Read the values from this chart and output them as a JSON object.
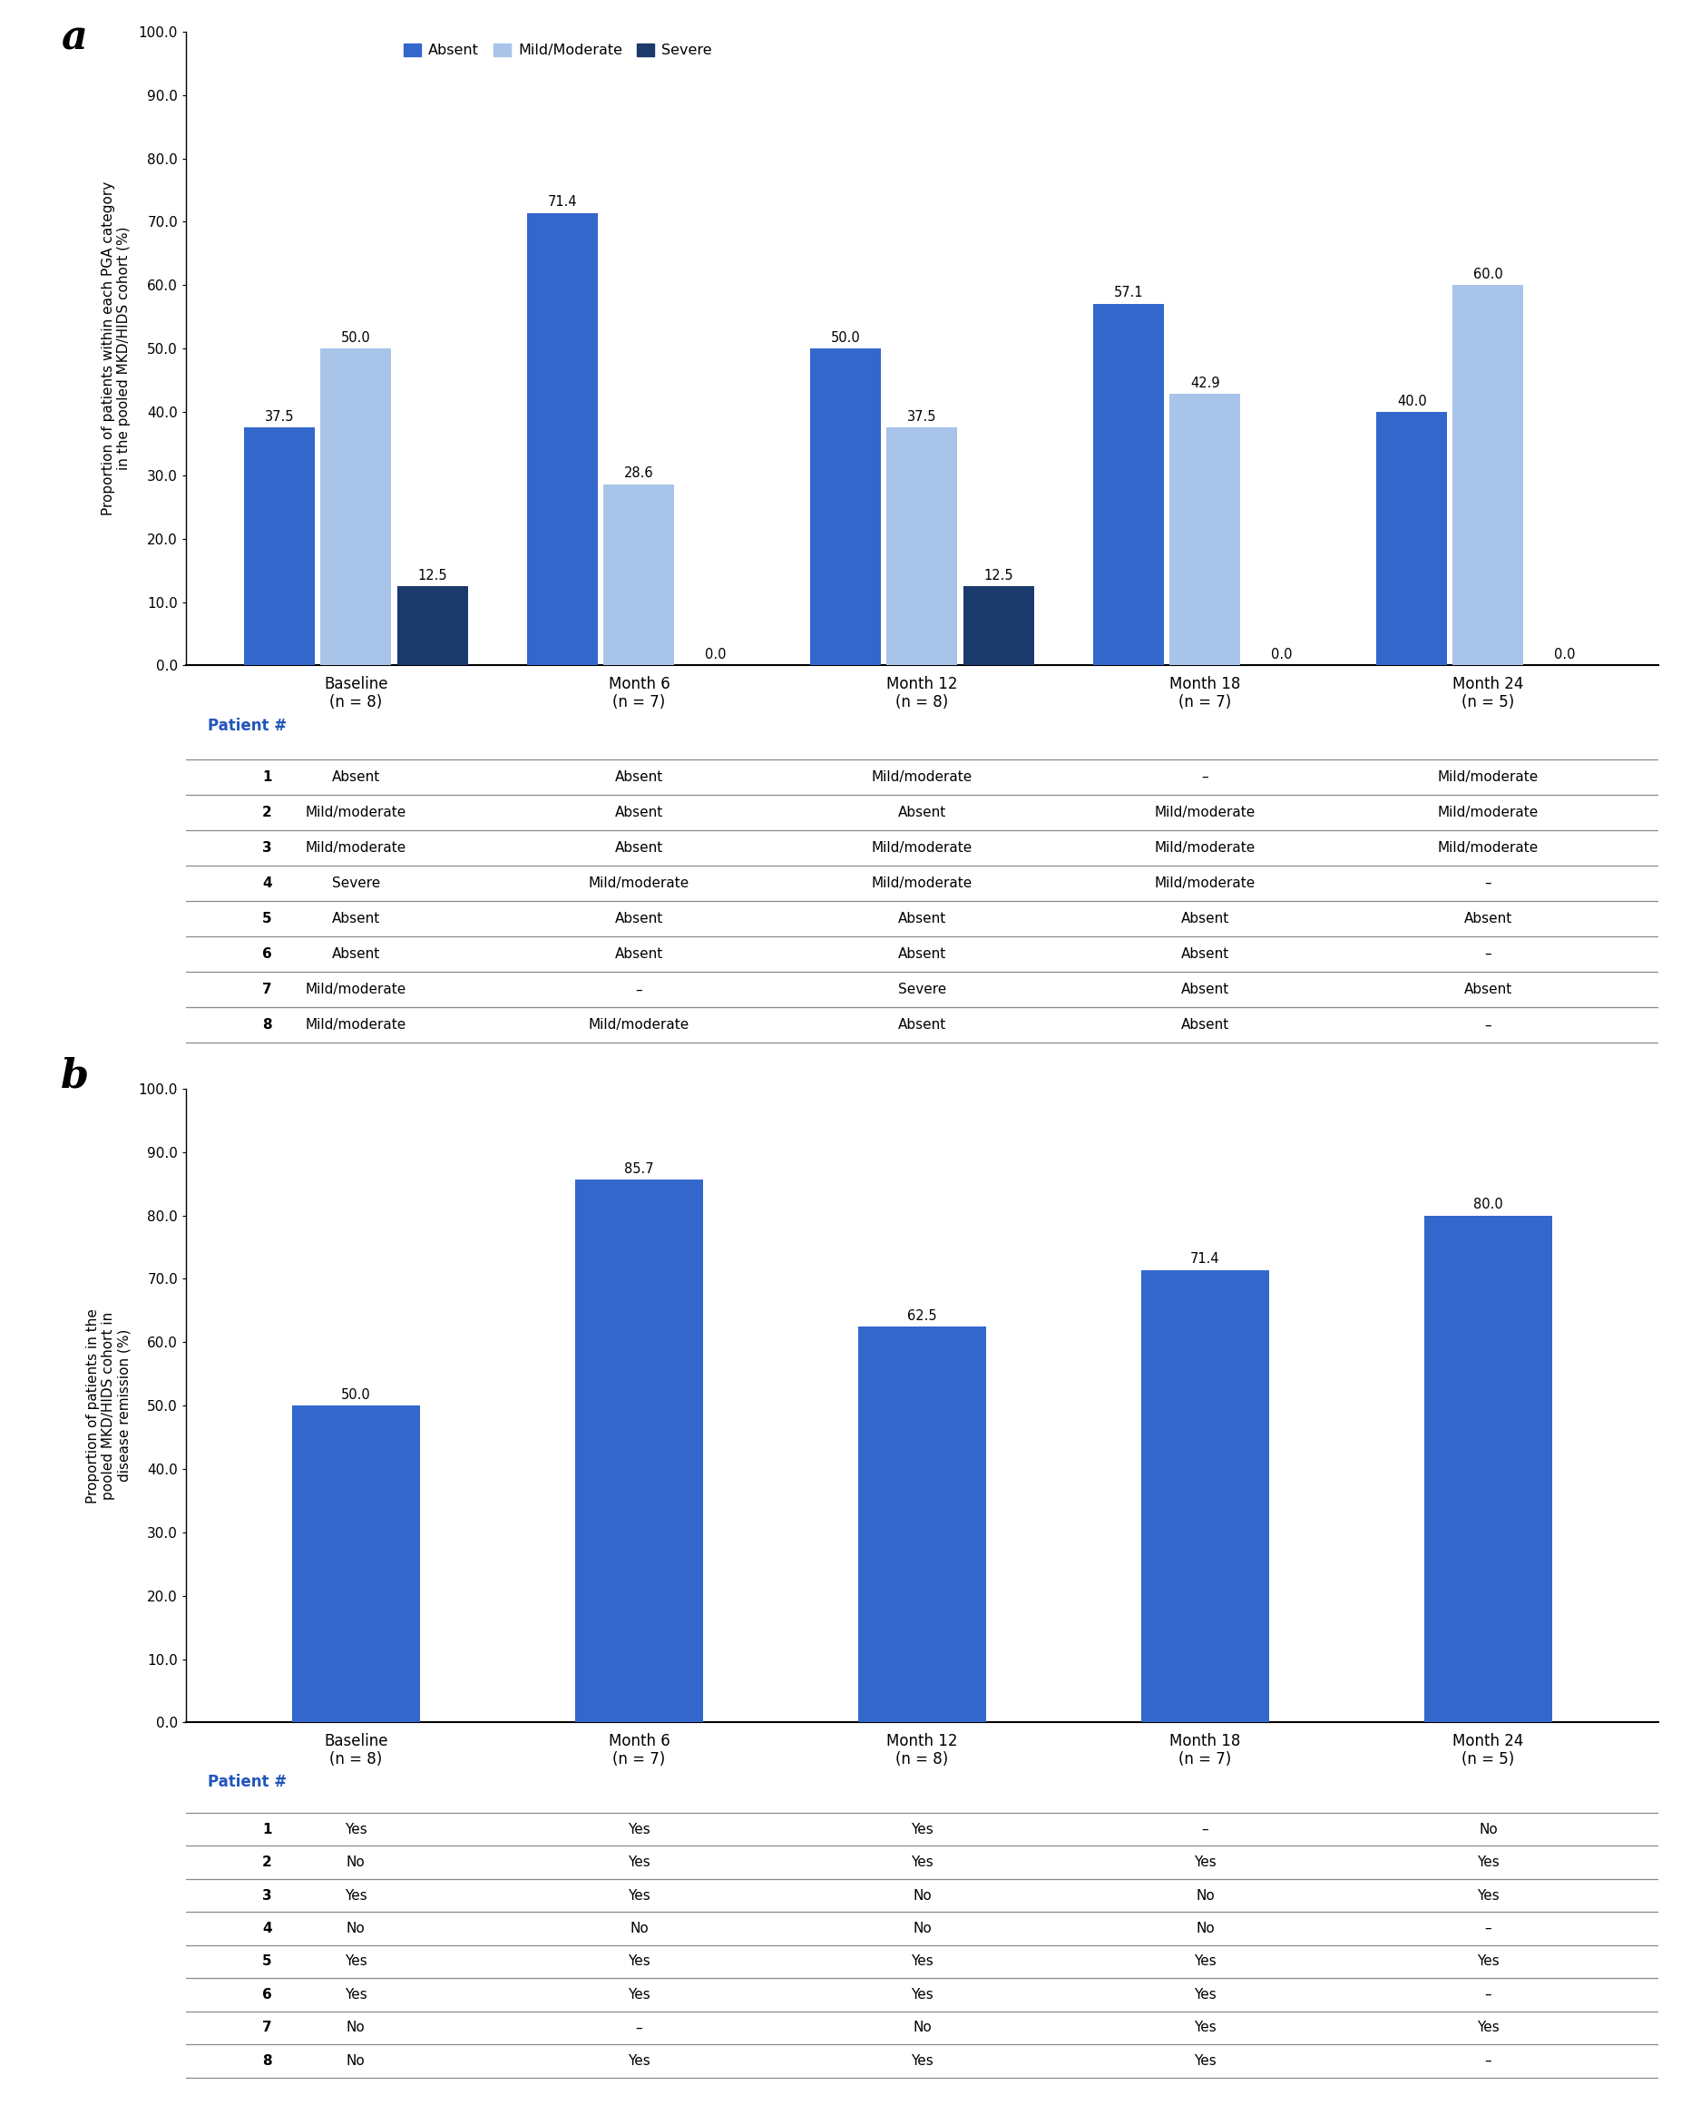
{
  "panel_a": {
    "label": "a",
    "categories": [
      "Baseline\n(n = 8)",
      "Month 6\n(n = 7)",
      "Month 12\n(n = 8)",
      "Month 18\n(n = 7)",
      "Month 24\n(n = 5)"
    ],
    "absent": [
      37.5,
      71.4,
      50.0,
      57.1,
      40.0
    ],
    "mild": [
      50.0,
      28.6,
      37.5,
      42.9,
      60.0
    ],
    "severe": [
      12.5,
      0.0,
      12.5,
      0.0,
      0.0
    ],
    "color_absent": "#3367CC",
    "color_mild": "#A8C4E8",
    "color_severe": "#1A3A6B",
    "ylabel": "Proportion of patients within each PGA category\nin the pooled MKD/HIDS cohort (%)",
    "ylim": [
      0,
      100
    ],
    "yticks": [
      0.0,
      10.0,
      20.0,
      30.0,
      40.0,
      50.0,
      60.0,
      70.0,
      80.0,
      90.0,
      100.0
    ],
    "legend_labels": [
      "Absent",
      "Mild/Moderate",
      "Severe"
    ],
    "table_header_color": "#2255BB",
    "table_header": "Patient #",
    "table_data": [
      [
        "1",
        "Absent",
        "Absent",
        "Mild/moderate",
        "–",
        "Mild/moderate"
      ],
      [
        "2",
        "Mild/moderate",
        "Absent",
        "Absent",
        "Mild/moderate",
        "Mild/moderate"
      ],
      [
        "3",
        "Mild/moderate",
        "Absent",
        "Mild/moderate",
        "Mild/moderate",
        "Mild/moderate"
      ],
      [
        "4",
        "Severe",
        "Mild/moderate",
        "Mild/moderate",
        "Mild/moderate",
        "–"
      ],
      [
        "5",
        "Absent",
        "Absent",
        "Absent",
        "Absent",
        "Absent"
      ],
      [
        "6",
        "Absent",
        "Absent",
        "Absent",
        "Absent",
        "–"
      ],
      [
        "7",
        "Mild/moderate",
        "–",
        "Severe",
        "Absent",
        "Absent"
      ],
      [
        "8",
        "Mild/moderate",
        "Mild/moderate",
        "Absent",
        "Absent",
        "–"
      ]
    ]
  },
  "panel_b": {
    "label": "b",
    "categories": [
      "Baseline\n(n = 8)",
      "Month 6\n(n = 7)",
      "Month 12\n(n = 8)",
      "Month 18\n(n = 7)",
      "Month 24\n(n = 5)"
    ],
    "values": [
      50.0,
      85.7,
      62.5,
      71.4,
      80.0
    ],
    "color": "#3367CC",
    "ylabel": "Proportion of patients in the\npooled MKD/HIDS cohort in\ndisease remission (%)",
    "ylim": [
      0,
      100
    ],
    "yticks": [
      0.0,
      10.0,
      20.0,
      30.0,
      40.0,
      50.0,
      60.0,
      70.0,
      80.0,
      90.0,
      100.0
    ],
    "table_header_color": "#2255BB",
    "table_header": "Patient #",
    "table_data": [
      [
        "1",
        "Yes",
        "Yes",
        "Yes",
        "–",
        "No"
      ],
      [
        "2",
        "No",
        "Yes",
        "Yes",
        "Yes",
        "Yes"
      ],
      [
        "3",
        "Yes",
        "Yes",
        "No",
        "No",
        "Yes"
      ],
      [
        "4",
        "No",
        "No",
        "No",
        "No",
        "–"
      ],
      [
        "5",
        "Yes",
        "Yes",
        "Yes",
        "Yes",
        "Yes"
      ],
      [
        "6",
        "Yes",
        "Yes",
        "Yes",
        "Yes",
        "–"
      ],
      [
        "7",
        "No",
        "–",
        "No",
        "Yes",
        "Yes"
      ],
      [
        "8",
        "No",
        "Yes",
        "Yes",
        "Yes",
        "–"
      ]
    ]
  }
}
